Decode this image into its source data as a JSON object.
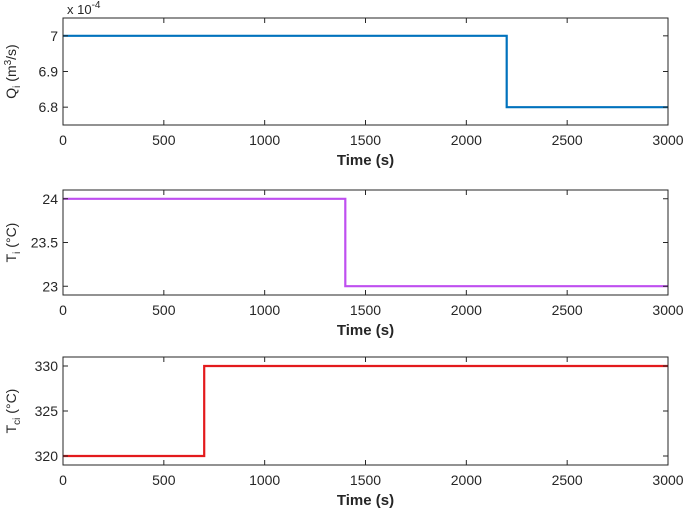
{
  "chart_data": [
    {
      "type": "line",
      "xlabel": "Time (s)",
      "ylabel_main": "Q",
      "ylabel_sub": "i",
      "ylabel_rest_1": " (m",
      "ylabel_sup": "3",
      "ylabel_rest_2": "/s)",
      "y_exponent": "x 10",
      "y_exponent_power": "-4",
      "xlim": [
        0,
        3000
      ],
      "ylim": [
        6.75,
        7.05
      ],
      "xticks": [
        0,
        500,
        1000,
        1500,
        2000,
        2500,
        3000
      ],
      "xtick_labels": [
        "0",
        "500",
        "1000",
        "1500",
        "2000",
        "2500",
        "3000"
      ],
      "yticks": [
        6.8,
        6.9,
        7.0
      ],
      "ytick_labels": [
        "6.8",
        "6.9",
        "7"
      ],
      "series": [
        {
          "color": "#0072BD",
          "x": [
            0,
            2200,
            2200,
            3000
          ],
          "y": [
            7.0,
            7.0,
            6.8,
            6.8
          ]
        }
      ]
    },
    {
      "type": "line",
      "xlabel": "Time (s)",
      "ylabel_main": "T",
      "ylabel_sub": "i",
      "ylabel_rest_1": " (°C)",
      "xlim": [
        0,
        3000
      ],
      "ylim": [
        22.9,
        24.1
      ],
      "xticks": [
        0,
        500,
        1000,
        1500,
        2000,
        2500,
        3000
      ],
      "xtick_labels": [
        "0",
        "500",
        "1000",
        "1500",
        "2000",
        "2500",
        "3000"
      ],
      "yticks": [
        23,
        23.5,
        24
      ],
      "ytick_labels": [
        "23",
        "23.5",
        "24"
      ],
      "series": [
        {
          "color": "#BF4FF0",
          "x": [
            0,
            1400,
            1400,
            3000
          ],
          "y": [
            24,
            24,
            23,
            23
          ]
        }
      ]
    },
    {
      "type": "line",
      "xlabel": "Time (s)",
      "ylabel_main": "T",
      "ylabel_sub": "ci",
      "ylabel_rest_1": " (°C)",
      "xlim": [
        0,
        3000
      ],
      "ylim": [
        319,
        331
      ],
      "xticks": [
        0,
        500,
        1000,
        1500,
        2000,
        2500,
        3000
      ],
      "xtick_labels": [
        "0",
        "500",
        "1000",
        "1500",
        "2000",
        "2500",
        "3000"
      ],
      "yticks": [
        320,
        325,
        330
      ],
      "ytick_labels": [
        "320",
        "325",
        "330"
      ],
      "series": [
        {
          "color": "#E31A1C",
          "x": [
            0,
            700,
            700,
            3000
          ],
          "y": [
            320,
            320,
            330,
            330
          ]
        }
      ]
    }
  ]
}
